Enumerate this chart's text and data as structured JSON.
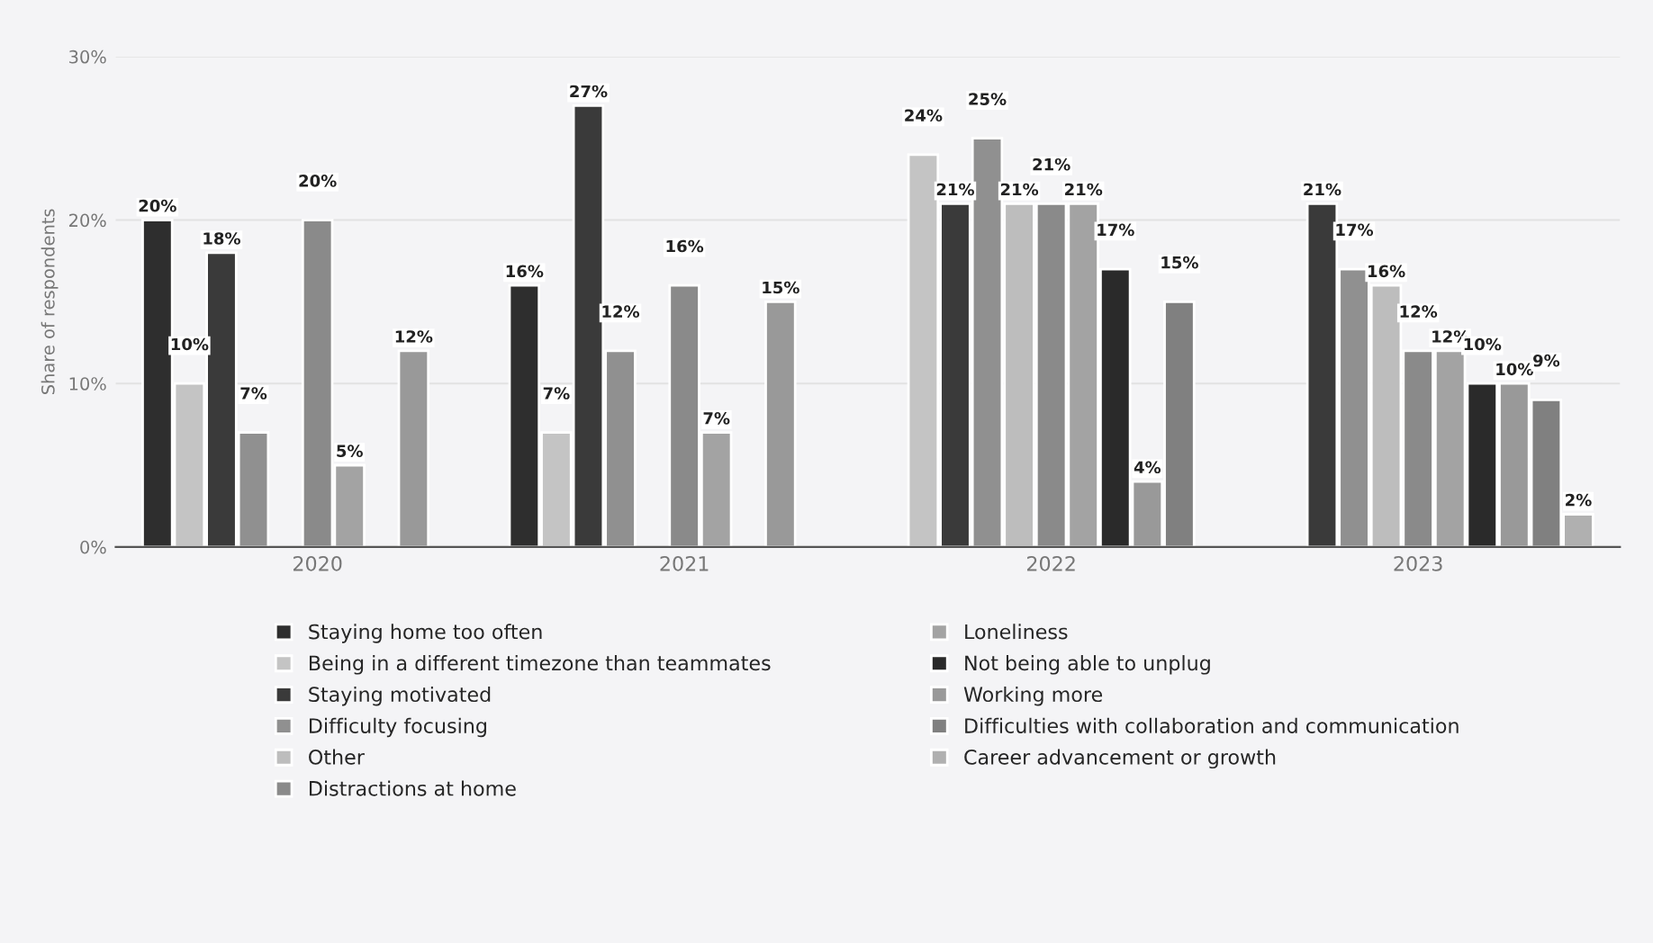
{
  "chart_data": {
    "type": "bar",
    "ylabel": "Share of respondents",
    "categories": [
      "2020",
      "2021",
      "2022",
      "2023"
    ],
    "ylim": [
      0,
      30
    ],
    "yticks": [
      {
        "value": 0,
        "label": "0%"
      },
      {
        "value": 10,
        "label": "10%"
      },
      {
        "value": 20,
        "label": "20%"
      },
      {
        "value": 30,
        "label": "30%"
      }
    ],
    "grid": "y",
    "legend": "bottom",
    "series": [
      {
        "name": "Staying home too often",
        "color": "#2e2e2e",
        "values": [
          20,
          16,
          null,
          null
        ],
        "value_labels": [
          "20%",
          "16%",
          null,
          null
        ]
      },
      {
        "name": "Being in a different timezone than teammates",
        "color": "#c4c4c4",
        "values": [
          10,
          7,
          24,
          null
        ],
        "value_labels": [
          "10%",
          "7%",
          "24%",
          null
        ]
      },
      {
        "name": "Staying motivated",
        "color": "#3a3a3a",
        "values": [
          18,
          27,
          21,
          21
        ],
        "value_labels": [
          "18%",
          "27%",
          "21%",
          "21%"
        ]
      },
      {
        "name": "Difficulty focusing",
        "color": "#909090",
        "values": [
          7,
          12,
          25,
          17
        ],
        "value_labels": [
          "7%",
          "12%",
          "25%",
          "17%"
        ]
      },
      {
        "name": "Other",
        "color": "#bdbdbd",
        "values": [
          null,
          null,
          21,
          16
        ],
        "value_labels": [
          null,
          null,
          "21%",
          "16%"
        ]
      },
      {
        "name": "Distractions at home",
        "color": "#8a8a8a",
        "values": [
          20,
          16,
          21,
          12
        ],
        "value_labels": [
          "20%",
          "16%",
          "21%",
          "12%"
        ]
      },
      {
        "name": "Loneliness",
        "color": "#a3a3a3",
        "values": [
          5,
          7,
          21,
          12
        ],
        "value_labels": [
          "5%",
          "7%",
          "21%",
          "12%"
        ]
      },
      {
        "name": "Not being able to unplug",
        "color": "#2a2a2a",
        "values": [
          null,
          null,
          17,
          10
        ],
        "value_labels": [
          null,
          null,
          "17%",
          "10%"
        ]
      },
      {
        "name": "Working more",
        "color": "#999999",
        "values": [
          12,
          15,
          4,
          10
        ],
        "value_labels": [
          "12%",
          "15%",
          "4%",
          "10%"
        ]
      },
      {
        "name": "Difficulties with collaboration and communication",
        "color": "#808080",
        "values": [
          null,
          null,
          15,
          9
        ],
        "value_labels": [
          null,
          null,
          "15%",
          "9%"
        ]
      },
      {
        "name": "Career advancement or growth",
        "color": "#b0b0b0",
        "values": [
          null,
          null,
          null,
          2
        ],
        "value_labels": [
          null,
          null,
          null,
          "2%"
        ]
      }
    ]
  }
}
